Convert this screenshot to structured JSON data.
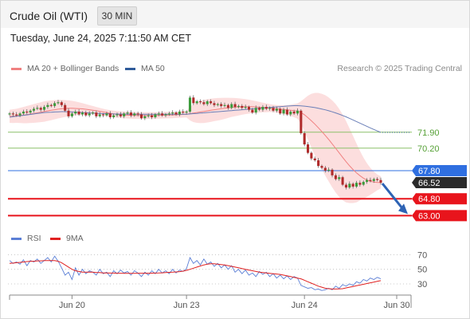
{
  "header": {
    "title": "Crude Oil (WTI)",
    "timeframe": "30 MIN"
  },
  "datetime": "Tuesday, June 24, 2025 7:11:50 AM CET",
  "legend": {
    "bollinger": {
      "label": "MA 20 + Bollinger Bands",
      "color": "#f08080"
    },
    "ma50": {
      "label": "MA 50",
      "color": "#2f5b9a"
    },
    "credit": "Research © 2025 Trading Central"
  },
  "rsi_legend": {
    "rsi": {
      "label": "RSI",
      "color": "#5b7fd6"
    },
    "ma9": {
      "label": "9MA",
      "color": "#e02020"
    }
  },
  "chart_data": [
    {
      "type": "candlestick",
      "title": "Crude Oil (WTI)",
      "x_ticks": [
        "Jun 20",
        "Jun 23",
        "Jun 24",
        "Jun 30"
      ],
      "ylim": [
        61.5,
        77.5
      ],
      "levels": [
        {
          "value": 71.9,
          "label": "71.90",
          "role": "resistance",
          "color": "#8cc06a"
        },
        {
          "value": 70.2,
          "label": "70.20",
          "role": "resistance",
          "color": "#8cc06a"
        },
        {
          "value": 67.8,
          "label": "67.80",
          "role": "pivot",
          "color": "#2f6fe0"
        },
        {
          "value": 66.52,
          "label": "66.52",
          "role": "last-price",
          "color": "#2b2b2b"
        },
        {
          "value": 64.8,
          "label": "64.80",
          "role": "support",
          "color": "#e8141c"
        },
        {
          "value": 63.0,
          "label": "63.00",
          "role": "support",
          "color": "#e8141c"
        }
      ],
      "series": [
        {
          "name": "close",
          "values": [
            73.9,
            73.8,
            73.7,
            73.9,
            74.1,
            74.0,
            74.2,
            74.4,
            74.5,
            74.3,
            74.6,
            74.8,
            74.7,
            75.0,
            75.1,
            74.8,
            74.2,
            73.6,
            73.9,
            74.1,
            73.8,
            74.0,
            73.7,
            73.9,
            74.0,
            73.6,
            73.8,
            73.7,
            73.9,
            73.5,
            73.7,
            73.8,
            73.6,
            73.9,
            74.0,
            73.7,
            73.9,
            73.8,
            73.4,
            73.6,
            73.7,
            73.5,
            73.8,
            73.9,
            73.7,
            73.8,
            73.9,
            74.0,
            73.8,
            74.1,
            74.0,
            74.1,
            75.6,
            75.0,
            75.2,
            75.1,
            74.9,
            75.2,
            75.0,
            74.8,
            74.9,
            74.7,
            74.8,
            74.5,
            74.9,
            74.6,
            74.7,
            74.5,
            74.6,
            74.3,
            74.0,
            74.5,
            74.3,
            74.6,
            74.4,
            74.5,
            74.2,
            74.4,
            73.9,
            74.3,
            73.8,
            74.1,
            73.9,
            74.2,
            71.8,
            70.6,
            69.7,
            69.1,
            68.9,
            68.3,
            68.1,
            67.8,
            67.9,
            67.3,
            66.9,
            67.1,
            66.3,
            66.0,
            66.4,
            66.1,
            66.5,
            66.3,
            66.6,
            66.8,
            66.7,
            66.9,
            66.8,
            66.5
          ]
        },
        {
          "name": "MA 50",
          "values": [
            73.5,
            73.55,
            73.6,
            73.65,
            73.7,
            73.75,
            73.8,
            73.85,
            73.9,
            73.95,
            74.0,
            74.02,
            74.04,
            74.06,
            74.08,
            74.1,
            74.1,
            74.08,
            74.06,
            74.04,
            74.02,
            74.0,
            73.98,
            73.96,
            73.94,
            73.92,
            73.9,
            73.88,
            73.88,
            73.86,
            73.85,
            73.84,
            73.84,
            73.83,
            73.83,
            73.82,
            73.82,
            73.82,
            73.82,
            73.82,
            73.82,
            73.82,
            73.82,
            73.82,
            73.82,
            73.82,
            73.82,
            73.82,
            73.82,
            73.82,
            73.82,
            73.82,
            73.85,
            73.88,
            73.91,
            73.94,
            73.97,
            74.0,
            74.03,
            74.06,
            74.09,
            74.12,
            74.15,
            74.18,
            74.21,
            74.24,
            74.27,
            74.3,
            74.33,
            74.36,
            74.39,
            74.42,
            74.45,
            74.48,
            74.51,
            74.54,
            74.57,
            74.6,
            74.63,
            74.66,
            74.69,
            74.72,
            74.73,
            74.73,
            74.71,
            74.68,
            74.64,
            74.59,
            74.53,
            74.46,
            74.38,
            74.29,
            74.19,
            74.08,
            73.96,
            73.83,
            73.69,
            73.54,
            73.38,
            73.21,
            73.04,
            72.87,
            72.7,
            72.53,
            72.36,
            72.2,
            72.04,
            71.88
          ]
        },
        {
          "name": "MA 20",
          "values": [
            73.6,
            73.62,
            73.65,
            73.69,
            73.73,
            73.78,
            73.84,
            73.9,
            73.97,
            74.04,
            74.11,
            74.18,
            74.24,
            74.3,
            74.36,
            74.4,
            74.43,
            74.45,
            74.45,
            74.44,
            74.42,
            74.39,
            74.35,
            74.3,
            74.25,
            74.19,
            74.13,
            74.06,
            73.99,
            73.92,
            73.86,
            73.81,
            73.77,
            73.74,
            73.72,
            73.7,
            73.69,
            73.69,
            73.68,
            73.68,
            73.68,
            73.68,
            73.69,
            73.7,
            73.71,
            73.72,
            73.73,
            73.74,
            73.76,
            73.78,
            73.8,
            73.82,
            73.88,
            73.94,
            74.0,
            74.06,
            74.12,
            74.18,
            74.24,
            74.3,
            74.35,
            74.4,
            74.45,
            74.5,
            74.55,
            74.58,
            74.6,
            74.62,
            74.63,
            74.63,
            74.62,
            74.6,
            74.57,
            74.54,
            74.51,
            74.48,
            74.44,
            74.4,
            74.36,
            74.32,
            74.28,
            74.24,
            74.2,
            74.16,
            74.0,
            73.76,
            73.46,
            73.12,
            72.76,
            72.38,
            71.98,
            71.56,
            71.12,
            70.66,
            70.18,
            69.7,
            69.22,
            68.76,
            68.32,
            67.92,
            67.56,
            67.26,
            67.0,
            66.8,
            66.66,
            66.58,
            66.55,
            66.55
          ]
        },
        {
          "name": "Bollinger Upper",
          "values": [
            74.3,
            74.35,
            74.4,
            74.5,
            74.6,
            74.7,
            74.8,
            74.9,
            75.0,
            75.1,
            75.2,
            75.25,
            75.3,
            75.32,
            75.35,
            75.35,
            75.33,
            75.3,
            75.25,
            75.18,
            75.1,
            75.0,
            74.9,
            74.8,
            74.7,
            74.6,
            74.5,
            74.4,
            74.32,
            74.26,
            74.2,
            74.16,
            74.12,
            74.1,
            74.08,
            74.06,
            74.05,
            74.04,
            74.03,
            74.03,
            74.03,
            74.03,
            74.04,
            74.05,
            74.06,
            74.07,
            74.08,
            74.09,
            74.1,
            74.12,
            74.14,
            74.16,
            74.6,
            74.9,
            75.1,
            75.25,
            75.35,
            75.42,
            75.48,
            75.52,
            75.55,
            75.57,
            75.58,
            75.58,
            75.57,
            75.55,
            75.52,
            75.48,
            75.43,
            75.37,
            75.3,
            75.22,
            75.14,
            75.06,
            74.98,
            74.9,
            74.84,
            74.8,
            74.78,
            74.78,
            74.8,
            74.84,
            74.9,
            74.98,
            75.2,
            75.5,
            75.8,
            76.0,
            76.1,
            76.1,
            76.0,
            75.85,
            75.6,
            75.3,
            74.9,
            74.4,
            73.8,
            73.1,
            72.3,
            71.5,
            70.7,
            69.9,
            69.2,
            68.6,
            68.1,
            67.7,
            67.4,
            67.2
          ]
        },
        {
          "name": "Bollinger Lower",
          "values": [
            72.9,
            72.89,
            72.9,
            72.88,
            72.86,
            72.86,
            72.88,
            72.9,
            72.94,
            72.98,
            73.02,
            73.11,
            73.18,
            73.28,
            73.37,
            73.45,
            73.53,
            73.6,
            73.65,
            73.7,
            73.74,
            73.78,
            73.8,
            73.8,
            73.8,
            73.78,
            73.76,
            73.72,
            73.66,
            73.58,
            73.52,
            73.46,
            73.42,
            73.38,
            73.36,
            73.34,
            73.33,
            73.34,
            73.33,
            73.33,
            73.33,
            73.33,
            73.34,
            73.35,
            73.36,
            73.37,
            73.38,
            73.39,
            73.42,
            73.44,
            73.46,
            73.48,
            73.16,
            72.98,
            72.9,
            72.87,
            72.89,
            72.94,
            73.0,
            73.08,
            73.15,
            73.23,
            73.32,
            73.42,
            73.53,
            73.61,
            73.68,
            73.76,
            73.83,
            73.89,
            73.94,
            73.98,
            74.0,
            74.02,
            74.04,
            74.06,
            74.04,
            74.0,
            73.94,
            73.86,
            73.76,
            73.64,
            73.5,
            73.34,
            72.8,
            72.02,
            71.12,
            70.24,
            69.42,
            68.66,
            67.96,
            67.27,
            66.64,
            66.02,
            65.46,
            65.0,
            64.64,
            64.42,
            64.34,
            64.34,
            64.42,
            64.62,
            64.8,
            65.0,
            65.22,
            65.46,
            65.7,
            65.9
          ]
        }
      ],
      "forecast": {
        "from": 66.52,
        "to": 63.0,
        "direction": "down"
      }
    },
    {
      "type": "line",
      "title": "RSI",
      "ylim": [
        18,
        78
      ],
      "y_ticks": [
        70,
        50,
        30
      ],
      "series": [
        {
          "name": "RSI",
          "values": [
            62,
            58,
            60,
            57,
            63,
            55,
            62,
            60,
            64,
            58,
            62,
            66,
            60,
            68,
            61,
            52,
            42,
            46,
            36,
            52,
            42,
            50,
            44,
            48,
            46,
            42,
            50,
            44,
            46,
            40,
            48,
            44,
            49,
            45,
            47,
            42,
            48,
            45,
            40,
            46,
            42,
            48,
            44,
            50,
            45,
            48,
            44,
            50,
            45,
            49,
            47,
            51,
            66,
            58,
            62,
            56,
            64,
            57,
            60,
            54,
            58,
            52,
            56,
            50,
            55,
            46,
            50,
            44,
            49,
            42,
            45,
            40,
            47,
            43,
            46,
            40,
            44,
            38,
            42,
            37,
            41,
            36,
            40,
            38,
            28,
            26,
            24,
            25,
            22,
            23,
            21,
            22,
            24,
            22,
            27,
            24,
            29,
            27,
            30,
            28,
            33,
            31,
            36,
            34,
            38,
            36,
            39,
            37
          ]
        },
        {
          "name": "9MA",
          "values": [
            58,
            58.5,
            59,
            59.5,
            60,
            60.5,
            61,
            61,
            61.5,
            61.5,
            62,
            62,
            62,
            62,
            61,
            59,
            56,
            53,
            50,
            48,
            47,
            46,
            46,
            46,
            46,
            45.5,
            45.5,
            45,
            45,
            44.8,
            44.8,
            44.6,
            44.6,
            44.5,
            44.5,
            44.5,
            44.5,
            44.6,
            44.6,
            44.6,
            44.6,
            44.7,
            44.8,
            45,
            45.2,
            45.5,
            45.8,
            46,
            46.4,
            46.8,
            47.5,
            48.5,
            50,
            51.5,
            53,
            54.5,
            56,
            57,
            57.5,
            57.5,
            57,
            56.5,
            56,
            55,
            54,
            53,
            52,
            51,
            50,
            49,
            48,
            47,
            46,
            45.5,
            45,
            44.5,
            44,
            43.5,
            43,
            42,
            41,
            40,
            39,
            38,
            37,
            35,
            33,
            31,
            29,
            27,
            25.5,
            24,
            23.5,
            23,
            23,
            23.2,
            23.5,
            24.5,
            25.5,
            26.5,
            27.5,
            28.5,
            29.5,
            30.5,
            31.5,
            32.5,
            33.5,
            34.5
          ]
        }
      ]
    }
  ]
}
